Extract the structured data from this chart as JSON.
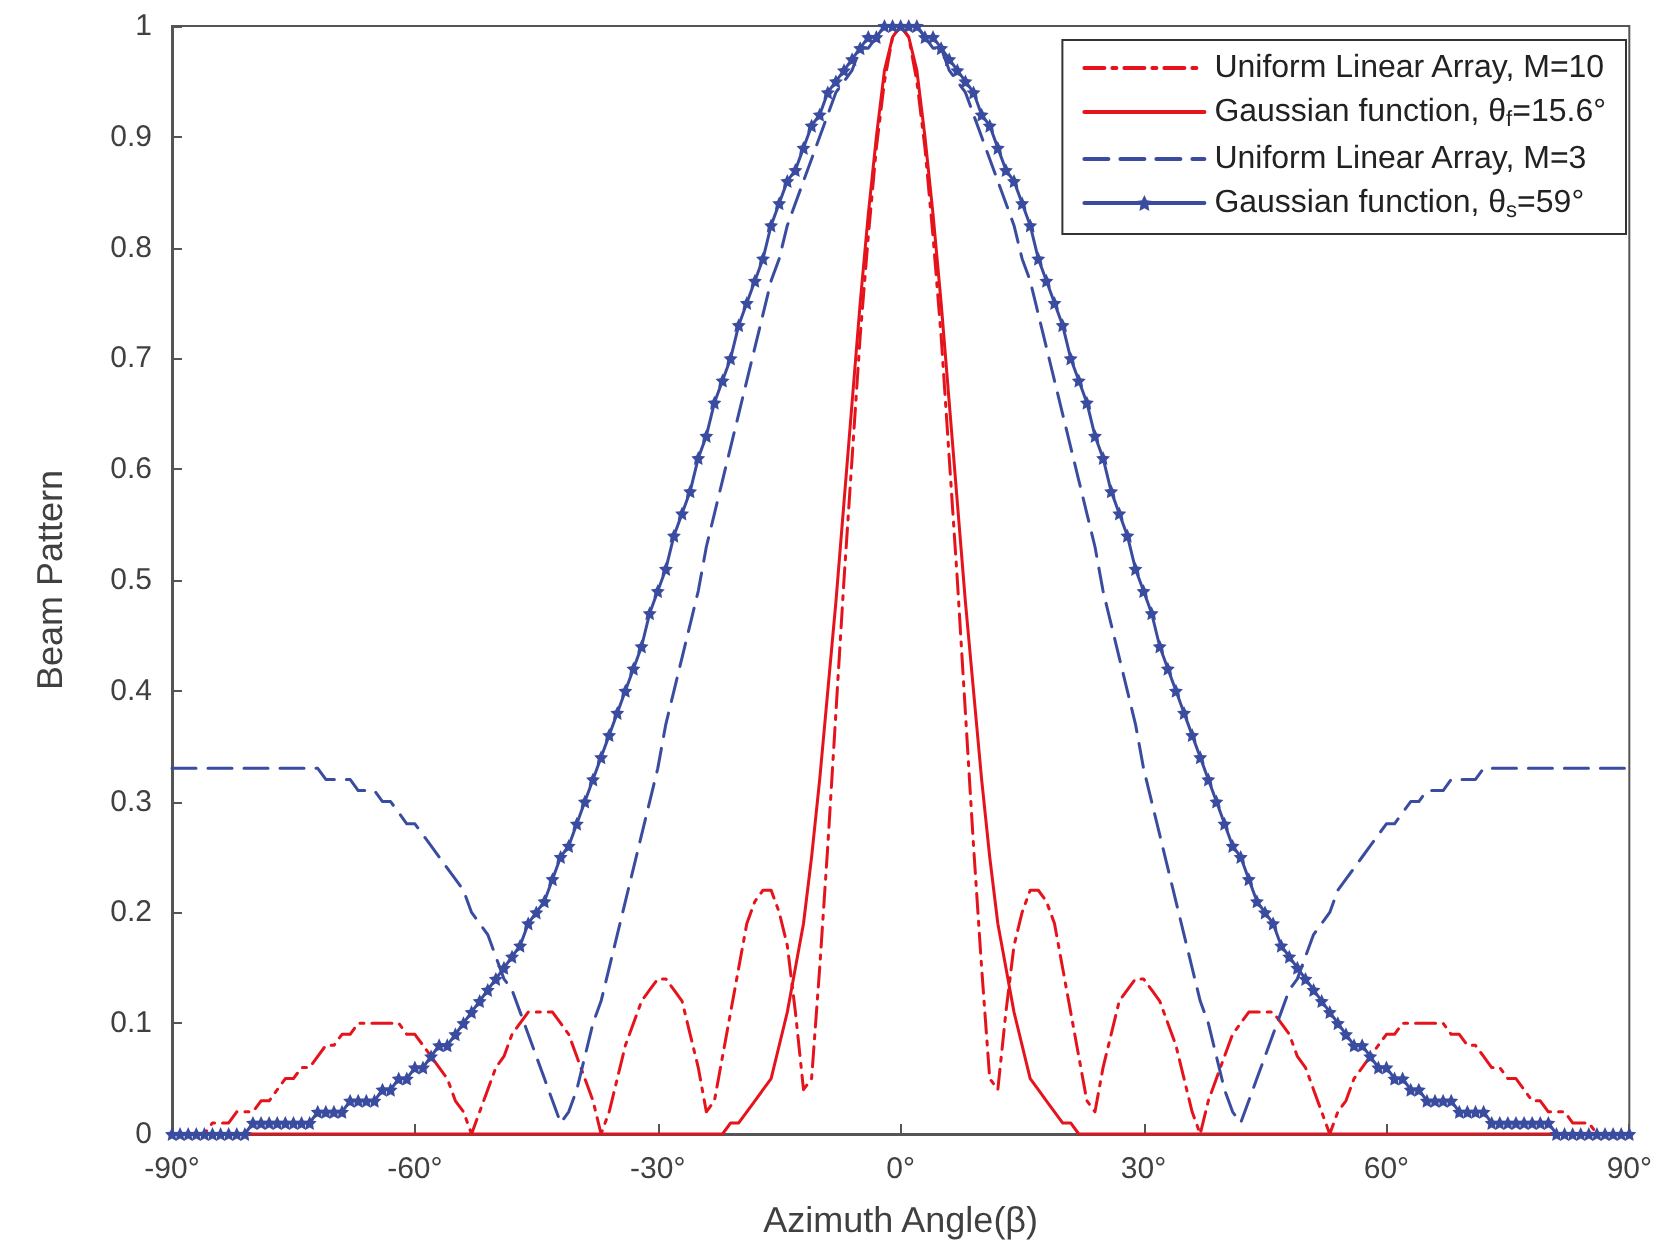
{
  "chart_data": {
    "type": "line",
    "xlabel": "Azimuth Angle(β)",
    "ylabel": "Beam Pattern",
    "xlim": [
      -90,
      90
    ],
    "xticks": [
      {
        "value": -90,
        "label": "-90°"
      },
      {
        "value": -60,
        "label": "-60°"
      },
      {
        "value": -30,
        "label": "-30°"
      },
      {
        "value": 0,
        "label": "0°"
      },
      {
        "value": 30,
        "label": "30°"
      },
      {
        "value": 60,
        "label": "60°"
      },
      {
        "value": 90,
        "label": "90°"
      }
    ],
    "ylim": [
      0,
      1
    ],
    "yticks": [
      0,
      0.1,
      0.2,
      0.3,
      0.4,
      0.5,
      0.6,
      0.7,
      0.8,
      0.9,
      1
    ],
    "grid": false,
    "legend": "top right",
    "marker": "none",
    "x": [
      -90,
      -89,
      -88,
      -87,
      -86,
      -85,
      -84,
      -83,
      -82,
      -81,
      -80,
      -79,
      -78,
      -77,
      -76,
      -75,
      -74,
      -73,
      -72,
      -71,
      -70,
      -69,
      -68,
      -67,
      -66,
      -65,
      -64,
      -63,
      -62,
      -61,
      -60,
      -59,
      -58,
      -57,
      -56,
      -55,
      -54,
      -53,
      -52,
      -51,
      -50,
      -49,
      -48,
      -47,
      -46,
      -45,
      -44,
      -43,
      -42,
      -41,
      -40,
      -39,
      -38,
      -37,
      -36,
      -35,
      -34,
      -33,
      -32,
      -31,
      -30,
      -29,
      -28,
      -27,
      -26,
      -25,
      -24,
      -23,
      -22,
      -21,
      -20,
      -19,
      -18,
      -17,
      -16,
      -15,
      -14,
      -13,
      -12,
      -11,
      -10,
      -9,
      -8,
      -7,
      -6,
      -5,
      -4,
      -3,
      -2,
      -1,
      0,
      1,
      2,
      3,
      4,
      5,
      6,
      7,
      8,
      9,
      10,
      11,
      12,
      13,
      14,
      15,
      16,
      17,
      18,
      19,
      20,
      21,
      22,
      23,
      24,
      25,
      26,
      27,
      28,
      29,
      30,
      31,
      32,
      33,
      34,
      35,
      36,
      37,
      38,
      39,
      40,
      41,
      42,
      43,
      44,
      45,
      46,
      47,
      48,
      49,
      50,
      51,
      52,
      53,
      54,
      55,
      56,
      57,
      58,
      59,
      60,
      61,
      62,
      63,
      64,
      65,
      66,
      67,
      68,
      69,
      70,
      71,
      72,
      73,
      74,
      75,
      76,
      77,
      78,
      79,
      80,
      81,
      82,
      83,
      84,
      85,
      86,
      87,
      88,
      89,
      90
    ],
    "series": [
      {
        "name": "Uniform Linear Array, M=10",
        "color": "#e5131b",
        "line_style": "dashdot",
        "values": [
          null,
          null,
          0,
          0,
          0,
          0.01,
          0.01,
          0.01,
          0.02,
          0.02,
          0.02,
          0.03,
          0.03,
          0.04,
          0.05,
          0.05,
          0.06,
          0.06,
          0.07,
          0.08,
          0.08,
          0.09,
          0.09,
          0.1,
          0.1,
          0.1,
          0.1,
          0.1,
          0.1,
          0.09,
          0.09,
          0.08,
          0.07,
          0.06,
          0.05,
          0.03,
          0.02,
          0,
          0.02,
          0.04,
          0.06,
          0.07,
          0.09,
          0.1,
          0.11,
          0.11,
          0.11,
          0.11,
          0.1,
          0.09,
          0.07,
          0.05,
          0.03,
          0,
          0.02,
          0.05,
          0.08,
          0.1,
          0.12,
          0.13,
          0.14,
          0.14,
          0.13,
          0.12,
          0.09,
          0.06,
          0.02,
          0.03,
          0.07,
          0.11,
          0.15,
          0.19,
          0.21,
          0.22,
          0.22,
          0.2,
          0.17,
          0.11,
          0.04,
          0.05,
          0.15,
          0.26,
          0.38,
          0.5,
          0.61,
          0.72,
          0.81,
          0.89,
          0.95,
          0.99,
          1,
          0.99,
          0.95,
          0.89,
          0.81,
          0.72,
          0.61,
          0.5,
          0.38,
          0.26,
          0.15,
          0.05,
          0.04,
          0.11,
          0.17,
          0.2,
          0.22,
          0.22,
          0.21,
          0.19,
          0.15,
          0.11,
          0.07,
          0.03,
          0.02,
          0.06,
          0.09,
          0.12,
          0.13,
          0.14,
          0.14,
          0.13,
          0.12,
          0.1,
          0.08,
          0.05,
          0.02,
          0,
          0.03,
          0.05,
          0.07,
          0.09,
          0.1,
          0.11,
          0.11,
          0.11,
          0.11,
          0.1,
          0.09,
          0.07,
          0.06,
          0.04,
          0.02,
          0,
          0.02,
          0.03,
          0.05,
          0.06,
          0.07,
          0.08,
          0.09,
          0.09,
          0.1,
          0.1,
          0.1,
          0.1,
          0.1,
          0.1,
          0.09,
          0.09,
          0.08,
          0.08,
          0.07,
          0.06,
          0.06,
          0.05,
          0.05,
          0.04,
          0.03,
          0.03,
          0.02,
          0.02,
          0.02,
          0.01,
          0.01,
          0.01,
          0,
          0,
          0,
          null,
          null
        ]
      },
      {
        "name": "Gaussian function, θ$_{f}$=15.6°",
        "color": "#e5131b",
        "line_style": "solid",
        "x": [
          -90,
          -22,
          -21,
          -20,
          -19,
          -18,
          -17,
          -16,
          -15,
          -14,
          -13,
          -12,
          -11,
          -10,
          -9,
          -8,
          -7,
          -6,
          -5,
          -4,
          -3,
          -2,
          -1,
          0,
          1,
          2,
          3,
          4,
          5,
          6,
          7,
          8,
          9,
          10,
          11,
          12,
          13,
          14,
          15,
          16,
          17,
          18,
          19,
          20,
          21,
          22,
          90
        ],
        "values": [
          0,
          0,
          0.01,
          0.01,
          0.02,
          0.03,
          0.04,
          0.05,
          0.08,
          0.11,
          0.15,
          0.19,
          0.25,
          0.32,
          0.4,
          0.48,
          0.57,
          0.66,
          0.75,
          0.83,
          0.9,
          0.96,
          0.99,
          1,
          0.99,
          0.96,
          0.9,
          0.83,
          0.75,
          0.66,
          0.57,
          0.48,
          0.4,
          0.32,
          0.25,
          0.19,
          0.15,
          0.11,
          0.08,
          0.05,
          0.04,
          0.03,
          0.02,
          0.01,
          0.01,
          0,
          0
        ]
      },
      {
        "name": "Uniform Linear Array, M=3",
        "color": "#3a4ca0",
        "line_style": "dashed",
        "values": [
          0.33,
          0.33,
          0.33,
          0.33,
          0.33,
          0.33,
          0.33,
          0.33,
          0.33,
          0.33,
          0.33,
          0.33,
          0.33,
          0.33,
          0.33,
          0.33,
          0.33,
          0.33,
          0.33,
          0.32,
          0.32,
          0.32,
          0.32,
          0.31,
          0.31,
          0.31,
          0.3,
          0.3,
          0.29,
          0.28,
          0.28,
          0.27,
          0.26,
          0.25,
          0.24,
          0.23,
          0.22,
          0.2,
          0.19,
          0.18,
          0.16,
          0.14,
          0.13,
          0.11,
          0.09,
          0.07,
          0.05,
          0.03,
          0.01,
          0.02,
          0.04,
          0.07,
          0.1,
          0.12,
          0.15,
          0.18,
          0.21,
          0.24,
          0.27,
          0.3,
          0.33,
          0.37,
          0.4,
          0.43,
          0.46,
          0.49,
          0.53,
          0.56,
          0.59,
          0.62,
          0.65,
          0.68,
          0.71,
          0.74,
          0.77,
          0.79,
          0.82,
          0.84,
          0.86,
          0.88,
          0.9,
          0.92,
          0.94,
          0.95,
          0.96,
          0.98,
          0.98,
          0.99,
          1,
          1,
          1,
          1,
          1,
          0.99,
          0.98,
          0.98,
          0.96,
          0.95,
          0.94,
          0.92,
          0.9,
          0.88,
          0.86,
          0.84,
          0.82,
          0.79,
          0.77,
          0.74,
          0.71,
          0.68,
          0.65,
          0.62,
          0.59,
          0.56,
          0.53,
          0.49,
          0.46,
          0.43,
          0.4,
          0.37,
          0.33,
          0.3,
          0.27,
          0.24,
          0.21,
          0.18,
          0.15,
          0.12,
          0.1,
          0.07,
          0.04,
          0.02,
          0.01,
          0.03,
          0.05,
          0.07,
          0.09,
          0.11,
          0.13,
          0.14,
          0.16,
          0.18,
          0.19,
          0.2,
          0.22,
          0.23,
          0.24,
          0.25,
          0.26,
          0.27,
          0.28,
          0.28,
          0.29,
          0.3,
          0.3,
          0.31,
          0.31,
          0.31,
          0.32,
          0.32,
          0.32,
          0.32,
          0.33,
          0.33,
          0.33,
          0.33,
          0.33,
          0.33,
          0.33,
          0.33,
          0.33,
          0.33,
          0.33,
          0.33,
          0.33,
          0.33,
          0.33,
          0.33,
          0.33,
          0.33,
          0.33
        ]
      },
      {
        "name": "Gaussian function, θ$_{s}$=59°",
        "color": "#3a4ca0",
        "line_style": "solid",
        "marker": "star",
        "values": [
          0,
          0,
          0,
          0,
          0,
          0,
          0,
          0,
          0,
          0,
          0.01,
          0.01,
          0.01,
          0.01,
          0.01,
          0.01,
          0.01,
          0.01,
          0.02,
          0.02,
          0.02,
          0.02,
          0.03,
          0.03,
          0.03,
          0.03,
          0.04,
          0.04,
          0.05,
          0.05,
          0.06,
          0.06,
          0.07,
          0.08,
          0.08,
          0.09,
          0.1,
          0.11,
          0.12,
          0.13,
          0.14,
          0.15,
          0.16,
          0.17,
          0.19,
          0.2,
          0.21,
          0.23,
          0.25,
          0.26,
          0.28,
          0.3,
          0.32,
          0.34,
          0.36,
          0.38,
          0.4,
          0.42,
          0.44,
          0.47,
          0.49,
          0.51,
          0.54,
          0.56,
          0.58,
          0.61,
          0.63,
          0.66,
          0.68,
          0.7,
          0.73,
          0.75,
          0.77,
          0.79,
          0.82,
          0.84,
          0.86,
          0.87,
          0.89,
          0.91,
          0.92,
          0.94,
          0.95,
          0.96,
          0.97,
          0.98,
          0.99,
          0.99,
          1,
          1,
          1,
          1,
          1,
          0.99,
          0.99,
          0.98,
          0.97,
          0.96,
          0.95,
          0.94,
          0.92,
          0.91,
          0.89,
          0.87,
          0.86,
          0.84,
          0.82,
          0.79,
          0.77,
          0.75,
          0.73,
          0.7,
          0.68,
          0.66,
          0.63,
          0.61,
          0.58,
          0.56,
          0.54,
          0.51,
          0.49,
          0.47,
          0.44,
          0.42,
          0.4,
          0.38,
          0.36,
          0.34,
          0.32,
          0.3,
          0.28,
          0.26,
          0.25,
          0.23,
          0.21,
          0.2,
          0.19,
          0.17,
          0.16,
          0.15,
          0.14,
          0.13,
          0.12,
          0.11,
          0.1,
          0.09,
          0.08,
          0.08,
          0.07,
          0.06,
          0.06,
          0.05,
          0.05,
          0.04,
          0.04,
          0.03,
          0.03,
          0.03,
          0.03,
          0.02,
          0.02,
          0.02,
          0.02,
          0.01,
          0.01,
          0.01,
          0.01,
          0.01,
          0.01,
          0.01,
          0.01,
          0,
          0,
          0,
          0,
          0,
          0,
          0,
          0,
          0,
          0
        ]
      }
    ]
  }
}
